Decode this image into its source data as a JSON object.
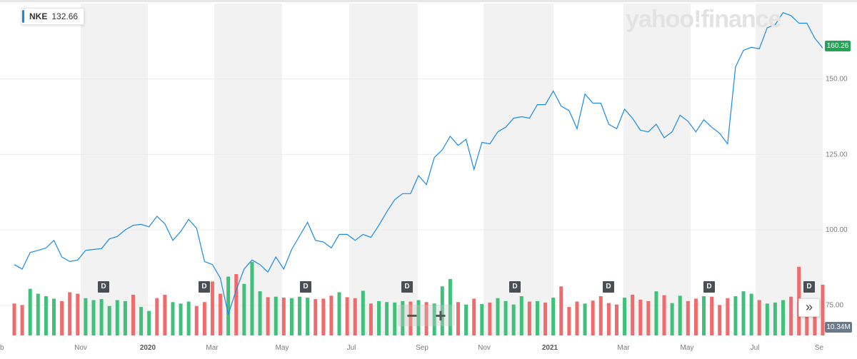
{
  "legend": {
    "symbol": "NKE",
    "value": "132.66"
  },
  "watermark": "yahoo!finance",
  "price_badge": "160.26",
  "volume_badge": "10.34M",
  "zoom": {
    "minus": "−",
    "plus": "+"
  },
  "scroll_button": "»",
  "dividend_marker_label": "D",
  "dividend_markers": [
    "2019-12",
    "2020-03",
    "2020-06",
    "2020-08",
    "2020-12",
    "2021-03",
    "2021-06",
    "2021-08"
  ],
  "colors": {
    "line": "#1a8ae5",
    "vol_up": "#41c07b",
    "vol_down": "#f06b6b",
    "band": "#f2f2f2",
    "grid": "#ececec"
  },
  "chart_data": {
    "type": "line",
    "series": [
      {
        "name": "NKE",
        "values": [
          88.5,
          87.0,
          92.5,
          93.2,
          94.0,
          96.5,
          91.0,
          89.5,
          90.0,
          93.2,
          93.5,
          93.8,
          97.0,
          97.8,
          100.0,
          101.5,
          101.8,
          101.0,
          104.5,
          102.0,
          96.5,
          99.5,
          103.5,
          100.5,
          89.5,
          88.5,
          84.0,
          72.0,
          80.0,
          87.0,
          90.0,
          88.5,
          86.0,
          91.0,
          87.0,
          93.5,
          98.0,
          102.5,
          96.5,
          96.0,
          94.0,
          98.5,
          98.5,
          96.5,
          98.5,
          97.5,
          101.5,
          106.0,
          110.0,
          112.0,
          112.0,
          118.0,
          115.0,
          124.0,
          126.5,
          131.0,
          128.0,
          130.0,
          120.0,
          129.0,
          128.5,
          132.5,
          134.0,
          137.0,
          137.5,
          137.0,
          141.5,
          141.5,
          146.0,
          141.0,
          139.5,
          133.5,
          145.0,
          142.0,
          142.0,
          135.0,
          133.5,
          140.0,
          137.0,
          133.0,
          132.5,
          135.0,
          130.5,
          132.5,
          138.0,
          136.0,
          132.5,
          136.5,
          134.0,
          132.0,
          128.5,
          154.0,
          159.5,
          160.5,
          160.0,
          167.0,
          168.0,
          172.0,
          171.0,
          168.5,
          168.5,
          163.5,
          160.26
        ]
      }
    ],
    "volume": {
      "values": [
        6.5,
        6.2,
        9.5,
        8.5,
        8.0,
        7.5,
        7.0,
        8.8,
        8.5,
        7.6,
        7.2,
        7.4,
        6.0,
        7.2,
        7.0,
        8.3,
        5.8,
        5.0,
        7.6,
        8.3,
        6.8,
        6.5,
        6.9,
        6.0,
        6.8,
        11.0,
        8.5,
        12.0,
        12.5,
        10.5,
        15.0,
        9.0,
        7.8,
        7.9,
        7.7,
        7.6,
        7.9,
        7.7,
        7.4,
        7.5,
        8.1,
        8.8,
        7.8,
        7.6,
        9.1,
        6.5,
        7.0,
        6.8,
        6.7,
        7.0,
        6.9,
        7.2,
        6.8,
        6.5,
        10.0,
        11.5,
        6.8,
        6.3,
        7.5,
        6.4,
        6.7,
        7.6,
        7.0,
        6.3,
        8.0,
        6.9,
        7.0,
        6.7,
        7.7,
        10.0,
        5.8,
        6.9,
        6.5,
        7.1,
        8.0,
        6.6,
        6.3,
        7.7,
        8.3,
        7.3,
        7.0,
        9.0,
        8.2,
        6.6,
        8.1,
        7.0,
        7.5,
        8.0,
        7.9,
        6.2,
        7.6,
        8.0,
        9.0,
        8.5,
        7.2,
        6.5,
        6.7,
        7.2,
        7.9,
        14.0,
        5.2,
        6.5,
        10.34
      ],
      "up": [
        false,
        false,
        true,
        true,
        true,
        true,
        false,
        false,
        false,
        true,
        true,
        true,
        true,
        true,
        true,
        false,
        true,
        true,
        false,
        false,
        true,
        true,
        true,
        false,
        false,
        false,
        false,
        true,
        false,
        true,
        true,
        true,
        false,
        true,
        false,
        true,
        true,
        true,
        false,
        false,
        false,
        true,
        false,
        false,
        true,
        false,
        true,
        true,
        true,
        true,
        false,
        true,
        false,
        true,
        true,
        true,
        false,
        true,
        false,
        true,
        false,
        true,
        true,
        true,
        true,
        false,
        true,
        false,
        true,
        false,
        false,
        false,
        true,
        false,
        false,
        false,
        false,
        true,
        false,
        false,
        false,
        true,
        false,
        true,
        true,
        false,
        false,
        true,
        false,
        false,
        false,
        true,
        true,
        true,
        false,
        true,
        true,
        true,
        false,
        false,
        false,
        false,
        false
      ]
    },
    "x_ticks": [
      "Nov",
      "2020",
      "Mar",
      "May",
      "Jul",
      "Sep",
      "Nov",
      "2021",
      "Mar",
      "May",
      "Jul",
      "Se"
    ],
    "y_ticks": [
      "150.00",
      "125.00",
      "100.00",
      "75.00"
    ],
    "ylim": [
      65,
      175
    ]
  }
}
